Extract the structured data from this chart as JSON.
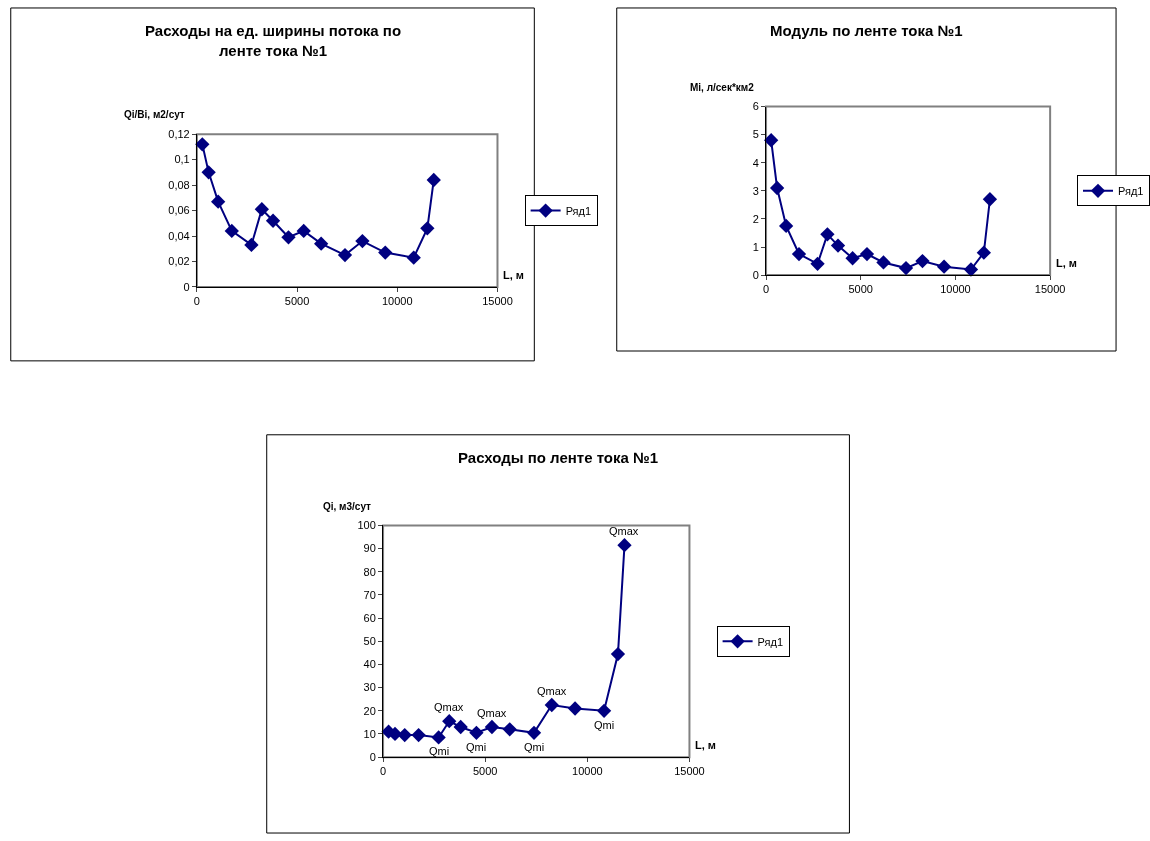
{
  "chart_data": [
    {
      "type": "line",
      "title": "Расходы на ед. ширины потока по ленте тока №1",
      "xlabel": "L, м",
      "ylabel": "Qi/Bi, м2/сут",
      "x": [
        270,
        585,
        1060,
        1740,
        2720,
        3240,
        3800,
        4570,
        5330,
        6200,
        7390,
        8260,
        9400,
        10820,
        11500,
        11820
      ],
      "series": [
        {
          "name": "Ряд1",
          "color": "#000080",
          "values": [
            0.112,
            0.09,
            0.067,
            0.044,
            0.033,
            0.061,
            0.052,
            0.039,
            0.044,
            0.034,
            0.025,
            0.036,
            0.027,
            0.023,
            0.046,
            0.084
          ]
        }
      ],
      "xlim": [
        0,
        15000
      ],
      "xticks": [
        0,
        5000,
        10000,
        15000
      ],
      "ylim": [
        0,
        0.12
      ],
      "yticks": [
        0,
        {
          "value": 0.02,
          "label": "0,02"
        },
        {
          "value": 0.04,
          "label": "0,04"
        },
        {
          "value": 0.06,
          "label": "0,06"
        },
        {
          "value": 0.08,
          "label": "0,08"
        },
        {
          "value": 0.1,
          "label": "0,1"
        },
        {
          "value": 0.12,
          "label": "0,12"
        }
      ],
      "marker": "diamond",
      "line_style": "solid",
      "legend": "right",
      "grid": false
    },
    {
      "type": "line",
      "title": "Модуль по ленте тока №1",
      "xlabel": "L, м",
      "ylabel": "Mi, л/сек*км2",
      "x": [
        270,
        585,
        1060,
        1740,
        2720,
        3240,
        3800,
        4570,
        5330,
        6200,
        7390,
        8260,
        9400,
        10820,
        11500,
        11820
      ],
      "series": [
        {
          "name": "Ряд1",
          "color": "#000080",
          "values": [
            4.8,
            3.1,
            1.75,
            0.75,
            0.4,
            1.45,
            1.05,
            0.6,
            0.75,
            0.45,
            0.25,
            0.5,
            0.3,
            0.2,
            0.8,
            2.7
          ]
        }
      ],
      "xlim": [
        0,
        15000
      ],
      "xticks": [
        0,
        5000,
        10000,
        15000
      ],
      "ylim": [
        0,
        6
      ],
      "yticks": [
        0,
        1,
        2,
        3,
        4,
        5,
        6
      ],
      "marker": "diamond",
      "line_style": "solid",
      "legend": "right",
      "grid": false
    },
    {
      "type": "line",
      "title": "Расходы по ленте тока №1",
      "xlabel": "L, м",
      "ylabel": "Qi, м3/сут",
      "x": [
        270,
        585,
        1060,
        1740,
        2720,
        3240,
        3800,
        4570,
        5330,
        6200,
        7390,
        8260,
        9400,
        10820,
        11500,
        11820
      ],
      "series": [
        {
          "name": "Ряд1",
          "color": "#000080",
          "values": [
            11,
            10,
            9.5,
            9.5,
            8.5,
            15.5,
            13,
            10.5,
            13,
            12,
            10.5,
            22.5,
            21,
            20,
            44.5,
            91.5
          ]
        }
      ],
      "xlim": [
        0,
        15000
      ],
      "xticks": [
        0,
        5000,
        10000,
        15000
      ],
      "ylim": [
        0,
        100
      ],
      "yticks": [
        0,
        10,
        20,
        30,
        40,
        50,
        60,
        70,
        80,
        90,
        100
      ],
      "marker": "diamond",
      "line_style": "solid",
      "legend": "right",
      "grid": false,
      "annotations": [
        {
          "text": "Qmax",
          "x": 3240,
          "y": 15.5
        },
        {
          "text": "Qmax",
          "x": 5330,
          "y": 13
        },
        {
          "text": "Qmax",
          "x": 8260,
          "y": 22.5
        },
        {
          "text": "Qmax",
          "x": 11820,
          "y": 91.5
        },
        {
          "text": "Qmi",
          "x": 2720,
          "y": 8.5
        },
        {
          "text": "Qmi",
          "x": 4570,
          "y": 10.5
        },
        {
          "text": "Qmi",
          "x": 7390,
          "y": 10.5
        },
        {
          "text": "Qmi",
          "x": 10820,
          "y": 20
        }
      ]
    }
  ]
}
